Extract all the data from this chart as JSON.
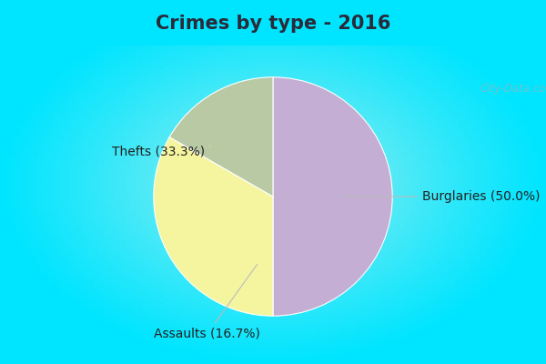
{
  "title": "Crimes by type - 2016",
  "slices": [
    {
      "label": "Burglaries (50.0%)",
      "value": 50.0,
      "color": "#c4aed4"
    },
    {
      "label": "Thefts (33.3%)",
      "value": 33.3,
      "color": "#f5f5a0"
    },
    {
      "label": "Assaults (16.7%)",
      "value": 16.7,
      "color": "#b8c9a4"
    }
  ],
  "bg_cyan": "#00e5ff",
  "bg_center": "#ddf2e8",
  "title_fontsize": 15,
  "label_fontsize": 10,
  "watermark": "City-Data.com",
  "title_color": "#2a2a3a"
}
